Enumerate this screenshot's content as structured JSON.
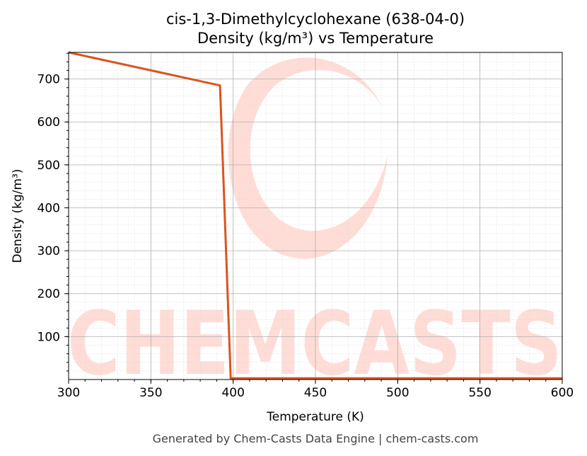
{
  "footer": "Generated by Chem-Casts Data Engine | chem-casts.com",
  "watermark": "CHEMCASTS",
  "chart_data": {
    "type": "line",
    "title_line1": "cis-1,3-Dimethylcyclohexane (638-04-0)",
    "title_line2": "Density (kg/m³) vs Temperature",
    "xlabel": "Temperature (K)",
    "ylabel": "Density (kg/m³)",
    "xlim": [
      300,
      600
    ],
    "ylim": [
      0,
      762
    ],
    "xticks": [
      300,
      350,
      400,
      450,
      500,
      550,
      600
    ],
    "yticks": [
      100,
      200,
      300,
      400,
      500,
      600,
      700
    ],
    "grid": true,
    "line_color": "#d9541e",
    "series": [
      {
        "x": [
          300,
          392,
          398.5,
          400,
          450,
          500,
          550,
          600
        ],
        "y": [
          762,
          685,
          3,
          3,
          3,
          3,
          3,
          3
        ]
      }
    ]
  }
}
